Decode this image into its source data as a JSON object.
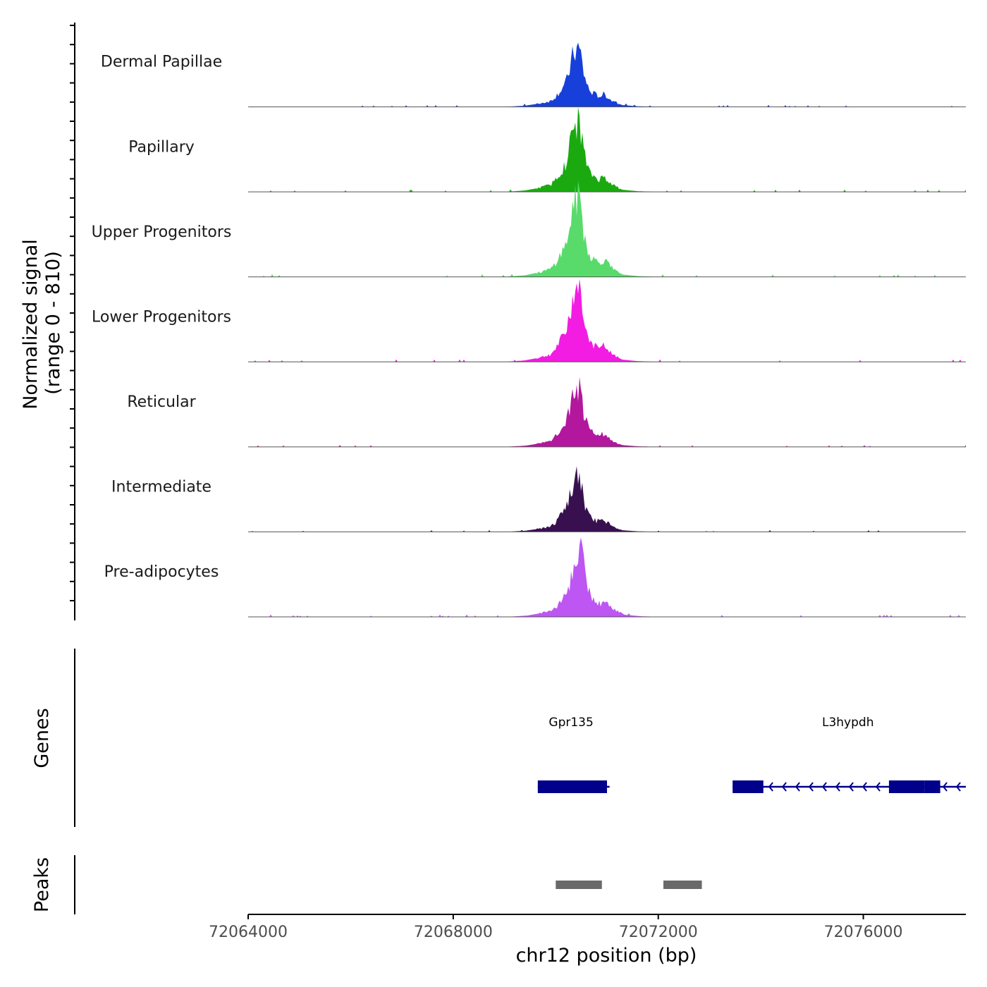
{
  "chart_data": {
    "type": "area",
    "title": "",
    "xlabel": "chr12 position (bp)",
    "ylabel": "Normalized signal",
    "ylabel_range": "(range 0 - 810)",
    "ylim": [
      0,
      810
    ],
    "xlim": [
      72064000,
      72078000
    ],
    "x_ticks": [
      72064000,
      72068000,
      72072000,
      72076000
    ],
    "x_tick_labels": [
      "72064000",
      "72068000",
      "72072000",
      "72076000"
    ],
    "signal_shape": {
      "x": [
        72069000,
        72069400,
        72069700,
        72069900,
        72070000,
        72070200,
        72070350,
        72070450,
        72070500,
        72070550,
        72070650,
        72070750,
        72070850,
        72070950,
        72071100,
        72071300,
        72071600,
        72072000
      ],
      "rel": [
        0.0,
        0.02,
        0.06,
        0.1,
        0.18,
        0.4,
        0.92,
        1.0,
        0.85,
        0.55,
        0.28,
        0.22,
        0.18,
        0.22,
        0.1,
        0.03,
        0.01,
        0.0
      ]
    },
    "series": [
      {
        "name": "Dermal Papillae",
        "color": "#1740DA",
        "peak": 600,
        "peak_x": 72070450
      },
      {
        "name": "Papillary",
        "color": "#1AAA10",
        "peak": 720,
        "peak_x": 72070450
      },
      {
        "name": "Upper Progenitors",
        "color": "#58DB6B",
        "peak": 810,
        "peak_x": 72070450
      },
      {
        "name": "Lower Progenitors",
        "color": "#F21CE3",
        "peak": 760,
        "peak_x": 72070450
      },
      {
        "name": "Reticular",
        "color": "#B2179E",
        "peak": 600,
        "peak_x": 72070450
      },
      {
        "name": "Intermediate",
        "color": "#38104F",
        "peak": 560,
        "peak_x": 72070450
      },
      {
        "name": "Pre-adipocytes",
        "color": "#BD56F2",
        "peak": 700,
        "peak_x": 72070500
      }
    ],
    "genes_title": "Genes",
    "genes": [
      {
        "name": "Gpr135",
        "label_x": 72070300,
        "start": 72069650,
        "end": 72071050,
        "strand": "-",
        "exons": [
          [
            72069650,
            72071000
          ]
        ]
      },
      {
        "name": "L3hypdh",
        "label_x": 72075700,
        "start": 72073450,
        "end": 72078000,
        "strand": "-",
        "exons": [
          [
            72073450,
            72074050
          ],
          [
            72076500,
            72077200
          ],
          [
            72077200,
            72077500
          ]
        ]
      }
    ],
    "gene_color": "#00008B",
    "peaks_title": "Peaks",
    "peaks": [
      [
        72070000,
        72070900
      ],
      [
        72072100,
        72072850
      ]
    ],
    "peak_color": "#696969"
  }
}
